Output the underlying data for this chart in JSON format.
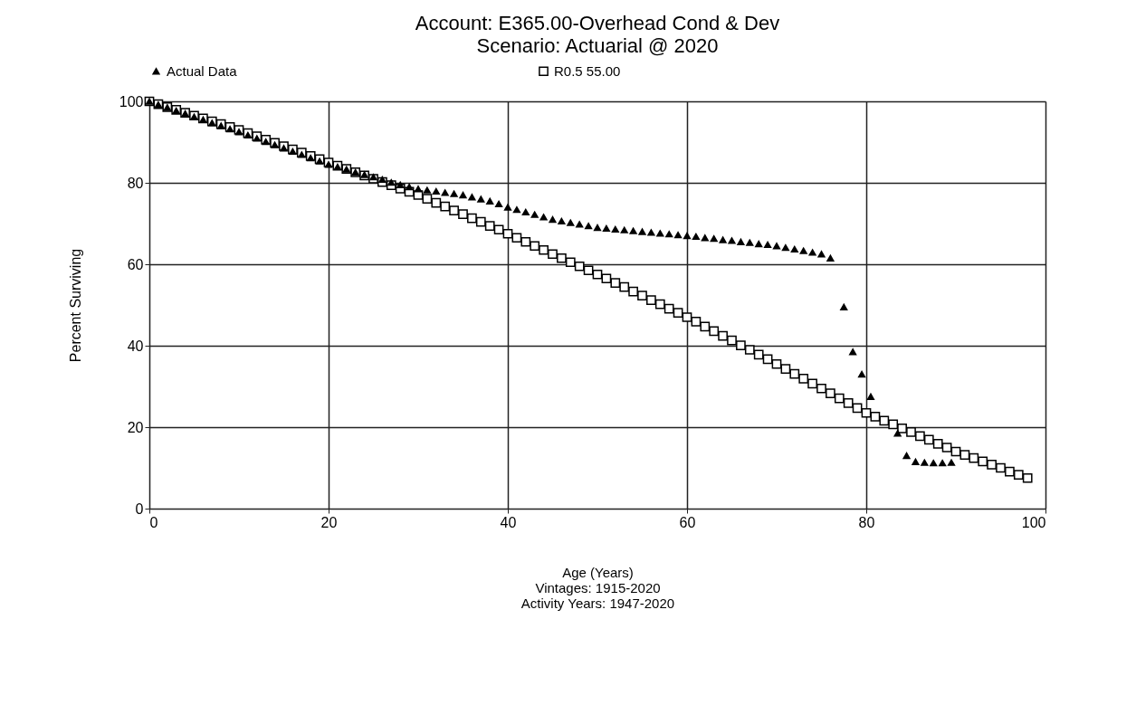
{
  "chart_data": {
    "type": "scatter",
    "title": "Account: E365.00-Overhead Cond & Dev",
    "subtitle": "Scenario: Actuarial @ 2020",
    "xlabel": "Age (Years)",
    "ylabel": "Percent Surviving",
    "annotations": [
      "Vintages: 1915-2020",
      "Activity Years: 1947-2020"
    ],
    "xlim": [
      0,
      100
    ],
    "xticks": [
      0,
      20,
      40,
      60,
      80,
      100
    ],
    "ylim": [
      0,
      100
    ],
    "yticks": [
      0,
      20,
      40,
      60,
      80,
      100
    ],
    "grid": true,
    "legend": "top",
    "series": [
      {
        "name": "Actual Data",
        "color": "#000000",
        "marker": "triangle",
        "x": [
          0,
          1,
          2,
          3,
          4,
          5,
          6,
          7,
          8,
          9,
          10,
          11,
          12,
          13,
          14,
          15,
          16,
          17,
          18,
          19,
          20,
          21,
          22,
          23,
          24,
          25,
          26,
          27,
          28,
          29,
          30,
          31,
          32,
          33,
          34,
          35,
          36,
          37,
          38,
          39,
          40,
          41,
          42,
          43,
          44,
          45,
          46,
          47,
          48,
          49,
          50,
          51,
          52,
          53,
          54,
          55,
          56,
          57,
          58,
          59,
          60,
          61,
          62,
          63,
          64,
          65,
          66,
          67,
          68,
          69,
          70,
          71,
          72,
          73,
          74,
          75,
          76,
          77.5,
          78.5,
          79.5,
          80.5,
          83.5,
          84.5,
          85.5,
          86.5,
          87.5,
          88.5,
          89.5
        ],
        "values": [
          100,
          99.2,
          98.5,
          97.7,
          97,
          96.2,
          95.5,
          94.7,
          94,
          93.2,
          92.5,
          91.7,
          90.9,
          90.1,
          89.3,
          88.5,
          87.7,
          86.9,
          86.1,
          85.3,
          84.5,
          83.9,
          83.3,
          82.6,
          82,
          81.4,
          80.8,
          80.1,
          79.5,
          79,
          78.5,
          78.2,
          77.9,
          77.6,
          77.3,
          77,
          76.5,
          76,
          75.5,
          74.8,
          74,
          73.4,
          72.8,
          72.2,
          71.6,
          71,
          70.6,
          70.2,
          69.8,
          69.4,
          69,
          68.8,
          68.6,
          68.4,
          68.2,
          68,
          67.8,
          67.6,
          67.4,
          67.2,
          67,
          66.8,
          66.5,
          66.3,
          66,
          65.8,
          65.5,
          65.3,
          65,
          64.8,
          64.5,
          64.1,
          63.7,
          63.3,
          62.9,
          62.5,
          61.5,
          49.5,
          38.5,
          33,
          27.5,
          18.5,
          13,
          11.5,
          11.3,
          11.2,
          11.2,
          11.3
        ]
      },
      {
        "name": "R0.5 55.00",
        "color": "#000000",
        "marker": "square",
        "x": [
          0,
          1,
          2,
          3,
          4,
          5,
          6,
          7,
          8,
          9,
          10,
          11,
          12,
          13,
          14,
          15,
          16,
          17,
          18,
          19,
          20,
          21,
          22,
          23,
          24,
          25,
          26,
          27,
          28,
          29,
          30,
          31,
          32,
          33,
          34,
          35,
          36,
          37,
          38,
          39,
          40,
          41,
          42,
          43,
          44,
          45,
          46,
          47,
          48,
          49,
          50,
          51,
          52,
          53,
          54,
          55,
          56,
          57,
          58,
          59,
          60,
          61,
          62,
          63,
          64,
          65,
          66,
          67,
          68,
          69,
          70,
          71,
          72,
          73,
          74,
          75,
          76,
          77,
          78,
          79,
          80,
          81,
          82,
          83,
          84,
          85,
          86,
          87,
          88,
          89,
          90,
          91,
          92,
          93,
          94,
          95,
          96,
          97,
          98
        ],
        "values": [
          100,
          99.3,
          98.6,
          97.9,
          97.2,
          96.5,
          95.8,
          95.1,
          94.4,
          93.7,
          93,
          92.2,
          91.4,
          90.6,
          89.8,
          89,
          88.2,
          87.4,
          86.6,
          85.8,
          85,
          84.2,
          83.4,
          82.6,
          81.8,
          81,
          80.2,
          79.4,
          78.6,
          77.8,
          77,
          76.1,
          75.1,
          74.2,
          73.2,
          72.3,
          71.3,
          70.4,
          69.4,
          68.5,
          67.5,
          66.5,
          65.5,
          64.5,
          63.5,
          62.5,
          61.5,
          60.5,
          59.5,
          58.5,
          57.5,
          56.5,
          55.4,
          54.4,
          53.3,
          52.3,
          51.2,
          50.2,
          49.1,
          48.1,
          47,
          45.9,
          44.7,
          43.6,
          42.4,
          41.3,
          40.1,
          39,
          37.8,
          36.7,
          35.5,
          34.3,
          33.1,
          31.9,
          30.7,
          29.5,
          28.3,
          27.1,
          25.9,
          24.7,
          23.5,
          22.6,
          21.6,
          20.7,
          19.7,
          18.8,
          17.8,
          16.9,
          15.9,
          15,
          14,
          13.2,
          12.4,
          11.6,
          10.8,
          10,
          9.1,
          8.3,
          7.5
        ]
      }
    ]
  }
}
